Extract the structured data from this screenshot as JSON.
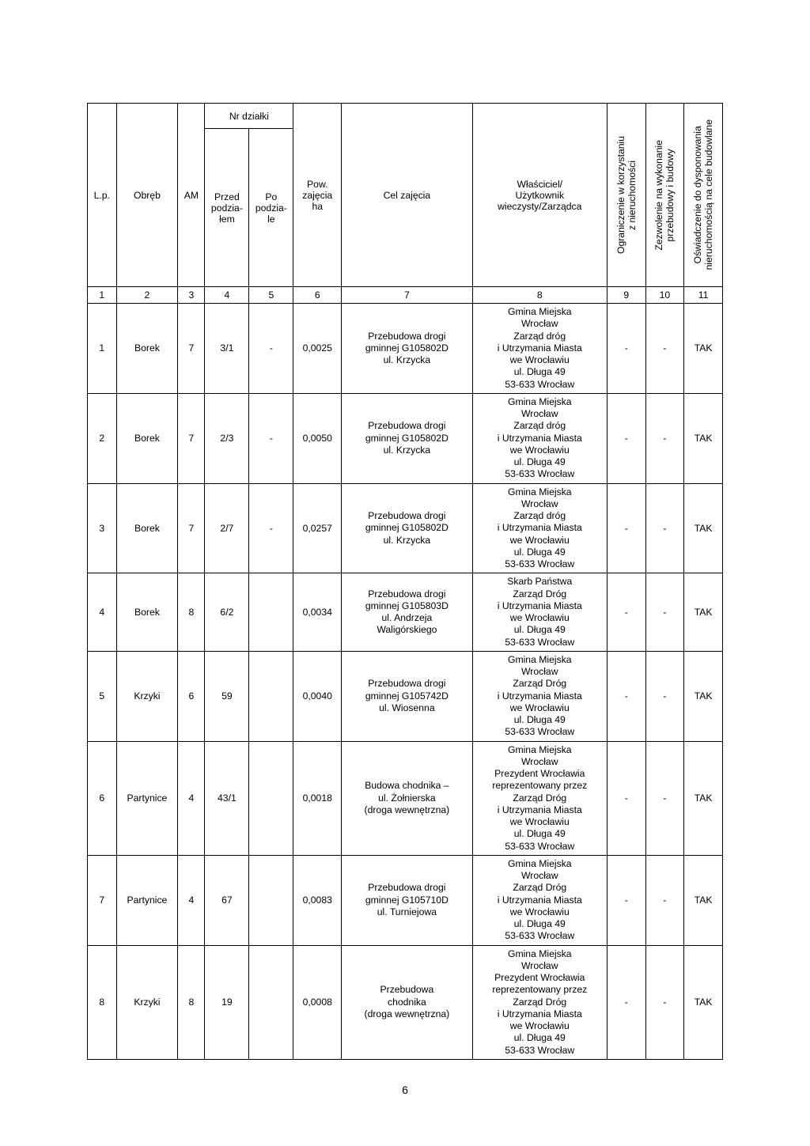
{
  "page_number": "6",
  "headers": {
    "lp": "L.p.",
    "obreb": "Obręb",
    "am": "AM",
    "nr_dzialki": "Nr działki",
    "przed": "Przed\npodzia-\nłem",
    "po": "Po\npodzia-\nle",
    "pow": "Pow.\nzajęcia\nha",
    "cel": "Cel zajęcia",
    "wlasciciel": "Właściciel/\nUżytkownik\nwieczysty/Zarządca",
    "ograniczenie": "Ograniczenie w korzystaniu\nz nieruchomości",
    "zezwolenie": "Zezwolenie na wykonanie\nprzebudowy i budowy",
    "oswiadczenie": "Oświadczenie do dysponowania\nnieruchomością na cele budowlane"
  },
  "colnums": [
    "1",
    "2",
    "3",
    "4",
    "5",
    "6",
    "7",
    "8",
    "9",
    "10",
    "11"
  ],
  "rows": [
    {
      "lp": "1",
      "obreb": "Borek",
      "am": "7",
      "przed": "3/1",
      "po": "-",
      "pow": "0,0025",
      "cel": "Przebudowa drogi\ngminnej G105802D\nul. Krzycka",
      "wlas": "Gmina Miejska\nWrocław\nZarząd dróg\ni Utrzymania Miasta\nwe Wrocławiu\nul. Długa 49\n53-633 Wrocław",
      "ogr": "-",
      "zez": "-",
      "osw": "TAK"
    },
    {
      "lp": "2",
      "obreb": "Borek",
      "am": "7",
      "przed": "2/3",
      "po": "-",
      "pow": "0,0050",
      "cel": "Przebudowa drogi\ngminnej G105802D\nul. Krzycka",
      "wlas": "Gmina Miejska\nWrocław\nZarząd dróg\ni Utrzymania Miasta\nwe Wrocławiu\nul. Długa 49\n53-633 Wrocław",
      "ogr": "-",
      "zez": "-",
      "osw": "TAK"
    },
    {
      "lp": "3",
      "obreb": "Borek",
      "am": "7",
      "przed": "2/7",
      "po": "-",
      "pow": "0,0257",
      "cel": "Przebudowa drogi\ngminnej G105802D\nul. Krzycka",
      "wlas": "Gmina Miejska\nWrocław\nZarząd dróg\ni Utrzymania Miasta\nwe Wrocławiu\nul. Długa 49\n53-633 Wrocław",
      "ogr": "-",
      "zez": "-",
      "osw": "TAK"
    },
    {
      "lp": "4",
      "obreb": "Borek",
      "am": "8",
      "przed": "6/2",
      "po": "",
      "pow": "0,0034",
      "cel": "Przebudowa drogi\ngminnej G105803D\nul. Andrzeja\nWaligórskiego",
      "wlas": "Skarb Państwa\nZarząd Dróg\ni Utrzymania Miasta\nwe Wrocławiu\nul. Długa 49\n53-633 Wrocław",
      "ogr": "-",
      "zez": "-",
      "osw": "TAK"
    },
    {
      "lp": "5",
      "obreb": "Krzyki",
      "am": "6",
      "przed": "59",
      "po": "",
      "pow": "0,0040",
      "cel": "Przebudowa drogi\ngminnej G105742D\nul. Wiosenna",
      "wlas": "Gmina Miejska\nWrocław\nZarząd Dróg\ni Utrzymania Miasta\nwe Wrocławiu\nul. Długa 49\n53-633 Wrocław",
      "ogr": "-",
      "zez": "-",
      "osw": "TAK"
    },
    {
      "lp": "6",
      "obreb": "Partynice",
      "am": "4",
      "przed": "43/1",
      "po": "",
      "pow": "0,0018",
      "cel": "Budowa chodnika –\nul. Żołnierska\n(droga wewnętrzna)",
      "wlas": "Gmina Miejska\nWrocław\nPrezydent Wrocławia\nreprezentowany przez\nZarząd Dróg\ni Utrzymania Miasta\nwe Wrocławiu\nul. Długa 49\n53-633 Wrocław",
      "ogr": "-",
      "zez": "-",
      "osw": "TAK"
    },
    {
      "lp": "7",
      "obreb": "Partynice",
      "am": "4",
      "przed": "67",
      "po": "",
      "pow": "0,0083",
      "cel": "Przebudowa drogi\ngminnej G105710D\nul. Turniejowa",
      "wlas": "Gmina Miejska\nWrocław\nZarząd Dróg\ni Utrzymania Miasta\nwe Wrocławiu\nul. Długa 49\n53-633 Wrocław",
      "ogr": "-",
      "zez": "-",
      "osw": "TAK"
    },
    {
      "lp": "8",
      "obreb": "Krzyki",
      "am": "8",
      "przed": "19",
      "po": "",
      "pow": "0,0008",
      "cel": "Przebudowa\nchodnika\n(droga wewnętrzna)",
      "wlas": "Gmina Miejska\nWrocław\nPrezydent Wrocławia\nreprezentowany przez\nZarząd Dróg\ni Utrzymania Miasta\nwe Wrocławiu\nul. Długa 49\n53-633 Wrocław",
      "ogr": "-",
      "zez": "-",
      "osw": "TAK"
    }
  ]
}
